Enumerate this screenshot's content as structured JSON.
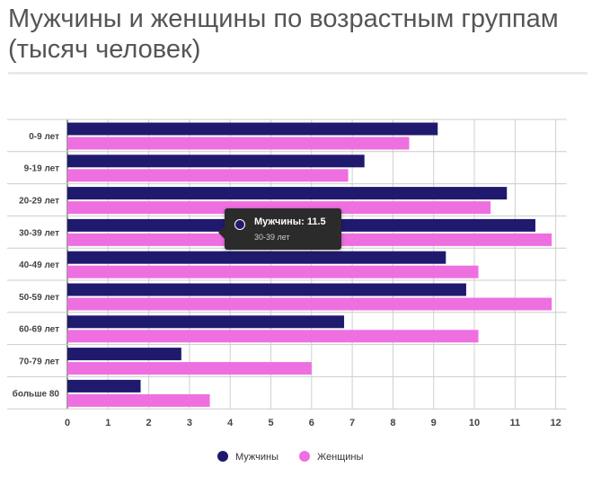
{
  "chart_data": {
    "type": "bar",
    "orientation": "horizontal",
    "title": "Мужчины и женщины по возрастным группам (тысяч человек)",
    "categories": [
      "0-9 лет",
      "9-19 лет",
      "20-29 лет",
      "30-39 лет",
      "40-49 лет",
      "50-59 лет",
      "60-69 лет",
      "70-79 лет",
      "больше 80"
    ],
    "series": [
      {
        "name": "Мужчины",
        "color": "#1f1a6e",
        "values": [
          9.1,
          7.3,
          10.8,
          11.5,
          9.3,
          9.8,
          6.8,
          2.8,
          1.8
        ]
      },
      {
        "name": "Женщины",
        "color": "#ee6fe0",
        "values": [
          8.4,
          6.9,
          10.4,
          11.9,
          10.1,
          11.9,
          10.1,
          6.0,
          3.5
        ]
      }
    ],
    "xlim": [
      0,
      12
    ],
    "xticks": [
      "0",
      "1",
      "2",
      "3",
      "4",
      "5",
      "6",
      "7",
      "8",
      "9",
      "10",
      "11",
      "12"
    ],
    "grid": true,
    "legend_position": "bottom"
  },
  "tooltip": {
    "series_color": "#1f1a6e",
    "title": "Мужчины: 11.5",
    "subtitle": "30-39 лет"
  }
}
